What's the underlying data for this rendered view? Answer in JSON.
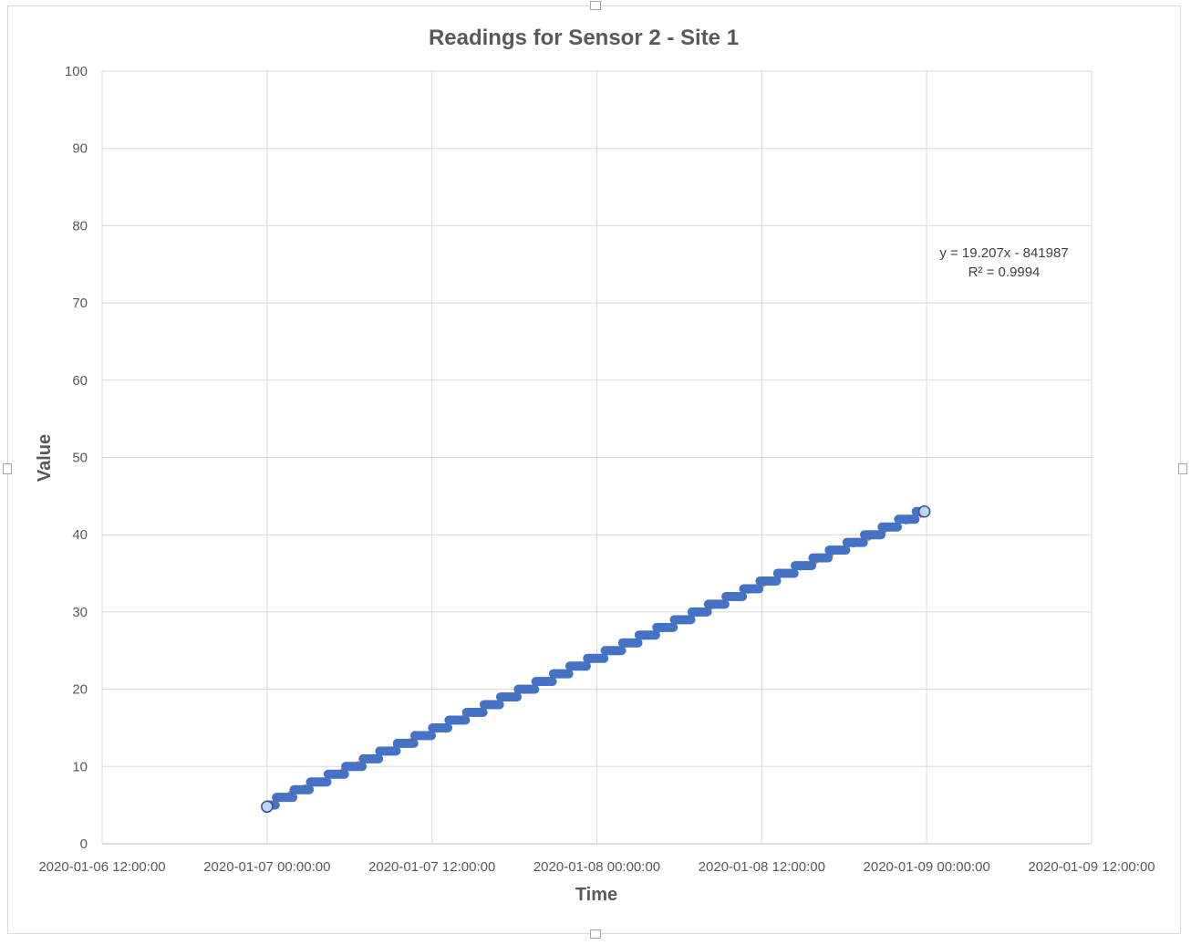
{
  "chart_data": {
    "type": "scatter",
    "title": "Readings for Sensor 2 - Site 1",
    "xlabel": "Time",
    "ylabel": "Value",
    "ylim": [
      0,
      100
    ],
    "y_ticks": [
      0,
      10,
      20,
      30,
      40,
      50,
      60,
      70,
      80,
      90,
      100
    ],
    "xlim": [
      "2020-01-06 12:00:00",
      "2020-01-09 12:00:00"
    ],
    "x_ticks": [
      "2020-01-06 12:00:00",
      "2020-01-07 00:00:00",
      "2020-01-07 12:00:00",
      "2020-01-08 00:00:00",
      "2020-01-08 12:00:00",
      "2020-01-09 00:00:00",
      "2020-01-09 12:00:00"
    ],
    "grid": true,
    "series": [
      {
        "x_start": "2020-01-07 00:00:00",
        "x_end": "2020-01-08 23:50:00",
        "y_start": 5,
        "y_end": 43,
        "pattern": "integer step readings increasing by 1 about every 1.25 hours",
        "color": "#4472c4"
      }
    ],
    "trendline": {
      "type": "linear",
      "style": "dotted",
      "color": "#ed7d31",
      "equation": "y = 19.207x - 841987",
      "r_squared": "R² = 0.9994"
    },
    "highlighted_points": [
      {
        "x": "2020-01-07 00:00:00",
        "y": 4.8
      },
      {
        "x": "2020-01-08 23:50:00",
        "y": 43
      }
    ]
  }
}
